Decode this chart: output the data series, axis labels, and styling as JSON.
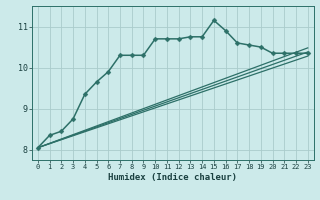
{
  "title": "",
  "xlabel": "Humidex (Indice chaleur)",
  "bg_color": "#cceaea",
  "grid_color": "#aacccc",
  "line_color": "#2d7068",
  "xlim": [
    -0.5,
    23.5
  ],
  "ylim": [
    7.75,
    11.5
  ],
  "xticks": [
    0,
    1,
    2,
    3,
    4,
    5,
    6,
    7,
    8,
    9,
    10,
    11,
    12,
    13,
    14,
    15,
    16,
    17,
    18,
    19,
    20,
    21,
    22,
    23
  ],
  "yticks": [
    8,
    9,
    10,
    11
  ],
  "series": [
    {
      "x": [
        0,
        1,
        2,
        3,
        4,
        5,
        6,
        7,
        8,
        9,
        10,
        11,
        12,
        13,
        14,
        15,
        16,
        17,
        18,
        19,
        20,
        21,
        22,
        23
      ],
      "y": [
        8.05,
        8.35,
        8.45,
        8.75,
        9.35,
        9.65,
        9.9,
        10.3,
        10.3,
        10.3,
        10.7,
        10.7,
        10.7,
        10.75,
        10.75,
        11.15,
        10.9,
        10.6,
        10.55,
        10.5,
        10.35,
        10.35,
        10.35,
        10.35
      ],
      "marker": "D",
      "markersize": 2.5,
      "linewidth": 1.1,
      "has_marker": true
    },
    {
      "x": [
        0,
        23
      ],
      "y": [
        8.05,
        10.38
      ],
      "has_marker": false,
      "linewidth": 0.9
    },
    {
      "x": [
        0,
        23
      ],
      "y": [
        8.05,
        10.28
      ],
      "has_marker": false,
      "linewidth": 0.9
    },
    {
      "x": [
        0,
        23
      ],
      "y": [
        8.05,
        10.48
      ],
      "has_marker": false,
      "linewidth": 0.9
    }
  ]
}
